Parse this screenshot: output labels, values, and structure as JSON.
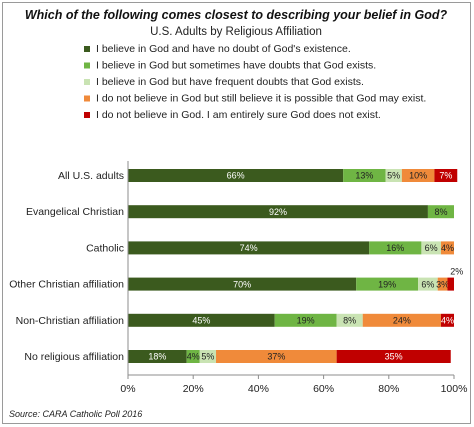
{
  "chart_data": {
    "type": "bar",
    "orientation": "horizontal",
    "stacked": true,
    "title": "Which of the following comes closest to describing your belief in God?",
    "subtitle": "U.S. Adults by Religious Affiliation",
    "source": "Source: CARA Catholic Poll 2016",
    "categories": [
      "All U.S. adults",
      "Evangelical Christian",
      "Catholic",
      "Other Christian affiliation",
      "Non-Christian affiliation",
      "No religious affiliation"
    ],
    "series": [
      {
        "name": "I believe in God and have no doubt of God's existence.",
        "color": "#3b5a1e",
        "values": [
          66,
          92,
          74,
          70,
          45,
          18
        ]
      },
      {
        "name": "I believe in God but sometimes have doubts that God exists.",
        "color": "#6fb544",
        "values": [
          13,
          8,
          16,
          19,
          19,
          4
        ]
      },
      {
        "name": "I believe in God but have frequent doubts that God exists.",
        "color": "#c9e3b3",
        "values": [
          5,
          0,
          6,
          6,
          8,
          5
        ]
      },
      {
        "name": "I do not believe in God but still believe it is possible that God may exist.",
        "color": "#f08a3a",
        "values": [
          10,
          0,
          4,
          3,
          24,
          37
        ]
      },
      {
        "name": "I do not believe in God. I am entirely sure God does not exist.",
        "color": "#c00000",
        "values": [
          7,
          0,
          0,
          2,
          4,
          35
        ]
      }
    ],
    "value_labels": [
      [
        "66%",
        "13%",
        "5%",
        "10%",
        "7%"
      ],
      [
        "92%",
        "8%",
        "",
        "",
        ""
      ],
      [
        "74%",
        "16%",
        "6%",
        "4%",
        ""
      ],
      [
        "70%",
        "19%",
        "6%",
        "3%",
        "2%"
      ],
      [
        "45%",
        "19%",
        "8%",
        "24%",
        "4%"
      ],
      [
        "18%",
        "4%",
        "5%",
        "37%",
        "35%"
      ]
    ],
    "xlim": [
      0,
      100
    ],
    "xticks": [
      "0%",
      "20%",
      "40%",
      "60%",
      "80%",
      "100%"
    ],
    "grid": false,
    "legend_position": "top"
  }
}
